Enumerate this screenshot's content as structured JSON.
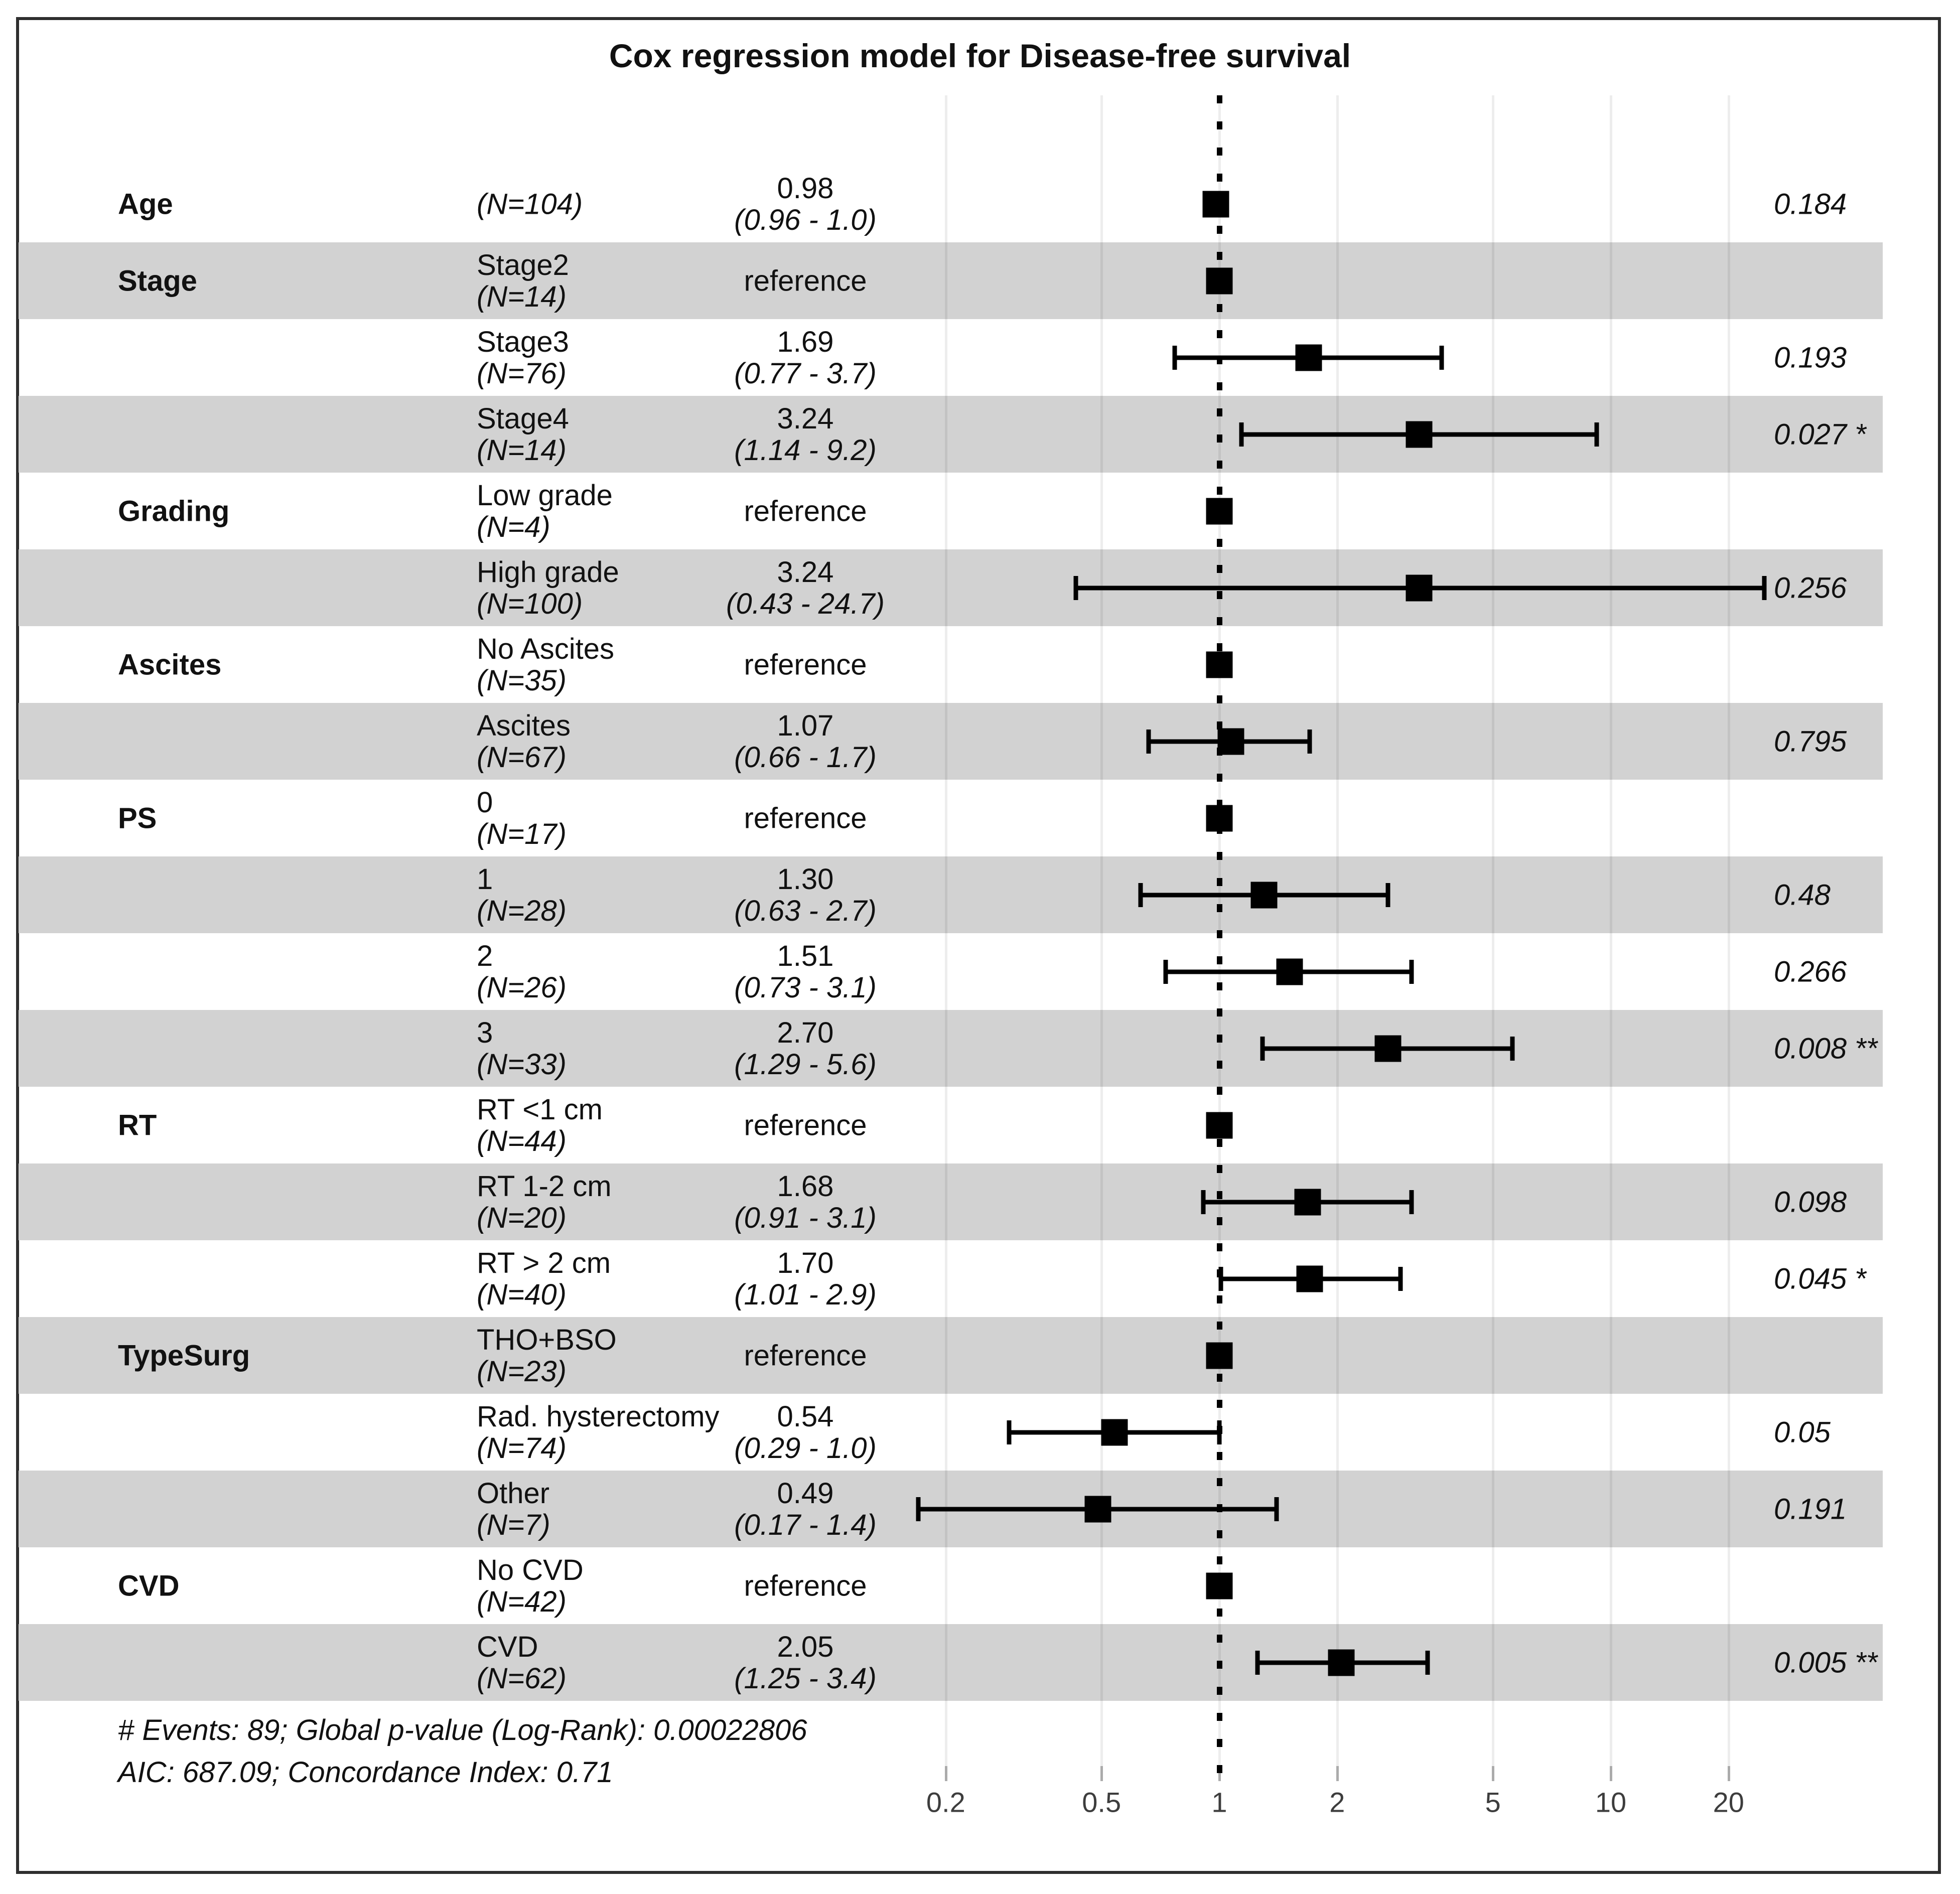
{
  "title": "Cox regression model for Disease-free survival",
  "footer": {
    "line1": "# Events: 89; Global p-value (Log-Rank): 0.00022806",
    "line2": "AIC: 687.09; Concordance Index: 0.71"
  },
  "colors": {
    "band": "#d2d2d2",
    "marker": "#000000",
    "frame": "#2f2f2f",
    "tick_label": "#3d3d3d"
  },
  "chart_data": {
    "type": "scatter",
    "subtype": "forest-plot",
    "title": "Cox regression model for Disease-free survival",
    "xscale": "log10",
    "xticks": [
      0.2,
      0.5,
      1,
      2,
      5,
      10,
      20
    ],
    "xlim": [
      0.15,
      30
    ],
    "reference_line_x": 1,
    "grid": "vertical-ticks-only",
    "legend_position": "none",
    "rows": [
      {
        "group": "Age",
        "level": "",
        "n": "(N=104)",
        "est": "0.98",
        "ci": "(0.96 - 1.0)",
        "hr": 0.98,
        "lo": 0.96,
        "hi": 1.0,
        "p": "0.184",
        "reference": false
      },
      {
        "group": "Stage",
        "level": "Stage2",
        "n": "(N=14)",
        "est": "reference",
        "ci": "",
        "hr": 1,
        "lo": null,
        "hi": null,
        "p": "",
        "reference": true
      },
      {
        "group": "",
        "level": "Stage3",
        "n": "(N=76)",
        "est": "1.69",
        "ci": "(0.77 - 3.7)",
        "hr": 1.69,
        "lo": 0.77,
        "hi": 3.7,
        "p": "0.193",
        "reference": false
      },
      {
        "group": "",
        "level": "Stage4",
        "n": "(N=14)",
        "est": "3.24",
        "ci": "(1.14 - 9.2)",
        "hr": 3.24,
        "lo": 1.14,
        "hi": 9.2,
        "p": "0.027 *",
        "reference": false
      },
      {
        "group": "Grading",
        "level": "Low grade",
        "n": "(N=4)",
        "est": "reference",
        "ci": "",
        "hr": 1,
        "lo": null,
        "hi": null,
        "p": "",
        "reference": true
      },
      {
        "group": "",
        "level": "High grade",
        "n": "(N=100)",
        "est": "3.24",
        "ci": "(0.43 - 24.7)",
        "hr": 3.24,
        "lo": 0.43,
        "hi": 24.7,
        "p": "0.256",
        "reference": false
      },
      {
        "group": "Ascites",
        "level": "No Ascites",
        "n": "(N=35)",
        "est": "reference",
        "ci": "",
        "hr": 1,
        "lo": null,
        "hi": null,
        "p": "",
        "reference": true
      },
      {
        "group": "",
        "level": "Ascites",
        "n": "(N=67)",
        "est": "1.07",
        "ci": "(0.66 - 1.7)",
        "hr": 1.07,
        "lo": 0.66,
        "hi": 1.7,
        "p": "0.795",
        "reference": false
      },
      {
        "group": "PS",
        "level": "0",
        "n": "(N=17)",
        "est": "reference",
        "ci": "",
        "hr": 1,
        "lo": null,
        "hi": null,
        "p": "",
        "reference": true
      },
      {
        "group": "",
        "level": "1",
        "n": "(N=28)",
        "est": "1.30",
        "ci": "(0.63 - 2.7)",
        "hr": 1.3,
        "lo": 0.63,
        "hi": 2.7,
        "p": "0.48",
        "reference": false
      },
      {
        "group": "",
        "level": "2",
        "n": "(N=26)",
        "est": "1.51",
        "ci": "(0.73 - 3.1)",
        "hr": 1.51,
        "lo": 0.73,
        "hi": 3.1,
        "p": "0.266",
        "reference": false
      },
      {
        "group": "",
        "level": "3",
        "n": "(N=33)",
        "est": "2.70",
        "ci": "(1.29 - 5.6)",
        "hr": 2.7,
        "lo": 1.29,
        "hi": 5.6,
        "p": "0.008 **",
        "reference": false
      },
      {
        "group": "RT",
        "level": "RT <1 cm",
        "n": "(N=44)",
        "est": "reference",
        "ci": "",
        "hr": 1,
        "lo": null,
        "hi": null,
        "p": "",
        "reference": true
      },
      {
        "group": "",
        "level": "RT 1-2 cm",
        "n": "(N=20)",
        "est": "1.68",
        "ci": "(0.91 - 3.1)",
        "hr": 1.68,
        "lo": 0.91,
        "hi": 3.1,
        "p": "0.098",
        "reference": false
      },
      {
        "group": "",
        "level": "RT > 2 cm",
        "n": "(N=40)",
        "est": "1.70",
        "ci": "(1.01 - 2.9)",
        "hr": 1.7,
        "lo": 1.01,
        "hi": 2.9,
        "p": "0.045 *",
        "reference": false
      },
      {
        "group": "TypeSurg",
        "level": "THO+BSO",
        "n": "(N=23)",
        "est": "reference",
        "ci": "",
        "hr": 1,
        "lo": null,
        "hi": null,
        "p": "",
        "reference": true
      },
      {
        "group": "",
        "level": "Rad. hysterectomy",
        "n": "(N=74)",
        "est": "0.54",
        "ci": "(0.29 - 1.0)",
        "hr": 0.54,
        "lo": 0.29,
        "hi": 1.0,
        "p": "0.05",
        "reference": false
      },
      {
        "group": "",
        "level": "Other",
        "n": "(N=7)",
        "est": "0.49",
        "ci": "(0.17 - 1.4)",
        "hr": 0.49,
        "lo": 0.17,
        "hi": 1.4,
        "p": "0.191",
        "reference": false
      },
      {
        "group": "CVD",
        "level": "No CVD",
        "n": "(N=42)",
        "est": "reference",
        "ci": "",
        "hr": 1,
        "lo": null,
        "hi": null,
        "p": "",
        "reference": true
      },
      {
        "group": "",
        "level": "CVD",
        "n": "(N=62)",
        "est": "2.05",
        "ci": "(1.25 - 3.4)",
        "hr": 2.05,
        "lo": 1.25,
        "hi": 3.4,
        "p": "0.005 **",
        "reference": false
      }
    ],
    "annotations": [
      "# Events: 89; Global p-value (Log-Rank): 0.00022806",
      "AIC: 687.09; Concordance Index: 0.71"
    ]
  }
}
